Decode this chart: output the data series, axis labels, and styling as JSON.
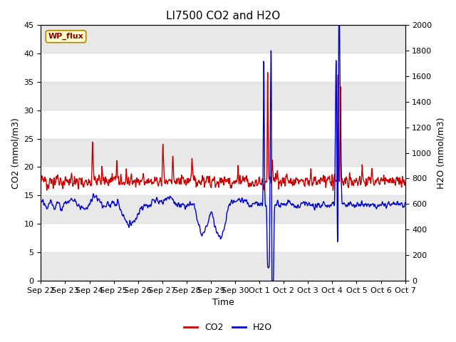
{
  "title": "LI7500 CO2 and H2O",
  "xlabel": "Time",
  "ylabel_left": "CO2 (mmol/m3)",
  "ylabel_right": "H2O (mmol/m3)",
  "ylim_left": [
    0,
    45
  ],
  "ylim_right": [
    0,
    2000
  ],
  "yticks_left": [
    0,
    5,
    10,
    15,
    20,
    25,
    30,
    35,
    40,
    45
  ],
  "yticks_right": [
    0,
    200,
    400,
    600,
    800,
    1000,
    1200,
    1400,
    1600,
    1800,
    2000
  ],
  "co2_color": "#cc0000",
  "h2o_color": "#0000cc",
  "fig_bg": "#ffffff",
  "plot_bg_light": "#ffffff",
  "plot_bg_dark": "#e8e8e8",
  "annotation_text": "WP_flux",
  "title_fontsize": 11,
  "label_fontsize": 9,
  "tick_fontsize": 8,
  "legend_fontsize": 9,
  "line_width": 1.0,
  "x_tick_labels": [
    "Sep 22",
    "Sep 23",
    "Sep 24",
    "Sep 25",
    "Sep 26",
    "Sep 27",
    "Sep 28",
    "Sep 29",
    "Sep 30",
    "Oct 1",
    "Oct 2",
    "Oct 3",
    "Oct 4",
    "Oct 5",
    "Oct 6",
    "Oct 7"
  ],
  "num_points": 2000
}
